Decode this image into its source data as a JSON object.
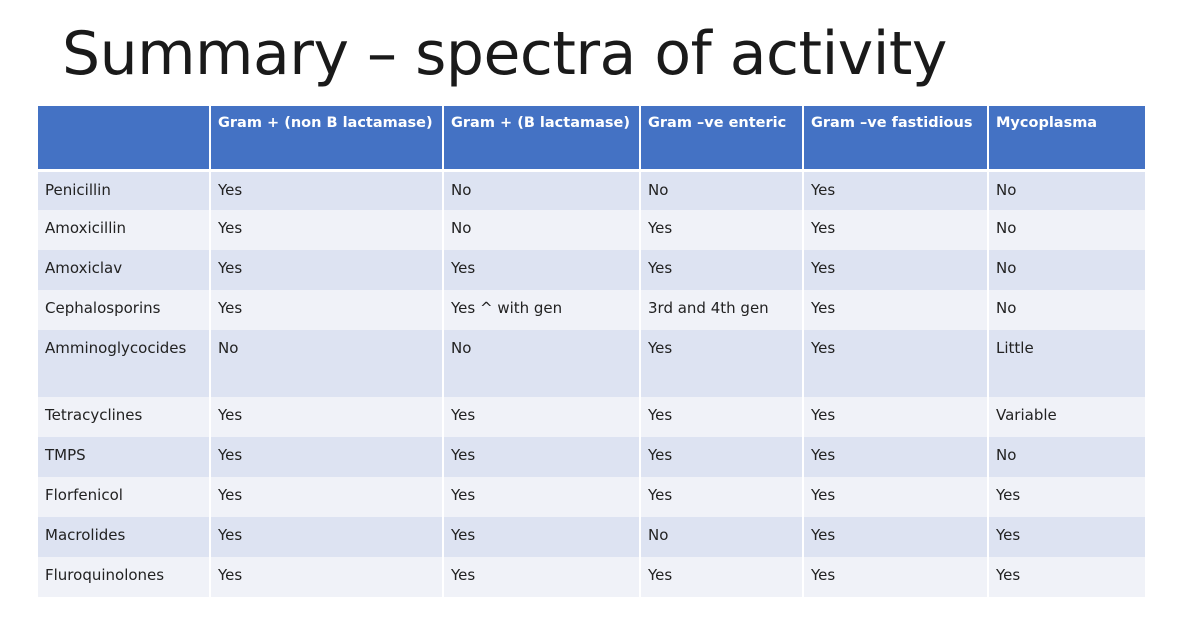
{
  "slide": {
    "title": "Summary – spectra of activity"
  },
  "table": {
    "headers": [
      "",
      "Gram + (non B lactamase)",
      "Gram + (B lactamase)",
      "Gram –ve enteric",
      "Gram –ve fastidious",
      "Mycoplasma"
    ],
    "rows": [
      [
        "Penicillin",
        "Yes",
        "No",
        "No",
        "Yes",
        "No"
      ],
      [
        "Amoxicillin",
        "Yes",
        "No",
        "Yes",
        "Yes",
        "No"
      ],
      [
        "Amoxiclav",
        "Yes",
        "Yes",
        "Yes",
        "Yes",
        "No"
      ],
      [
        "Cephalosporins",
        "Yes",
        "Yes ^ with gen",
        "3rd and 4th gen",
        "Yes",
        "No"
      ],
      [
        "Amminoglycocides",
        "No",
        "No",
        "Yes",
        "Yes",
        "Little"
      ],
      [
        "Tetracyclines",
        "Yes",
        "Yes",
        "Yes",
        "Yes",
        "Variable"
      ],
      [
        "TMPS",
        "Yes",
        "Yes",
        "Yes",
        "Yes",
        "No"
      ],
      [
        "Florfenicol",
        "Yes",
        "Yes",
        "Yes",
        "Yes",
        "Yes"
      ],
      [
        "Macrolides",
        "Yes",
        "Yes",
        "No",
        "Yes",
        "Yes"
      ],
      [
        "Fluroquinolones",
        "Yes",
        "Yes",
        "Yes",
        "Yes",
        "Yes"
      ]
    ]
  },
  "colors": {
    "header_bg": "#4472c4",
    "header_text": "#ffffff",
    "row_band_dark": "#dde3f2",
    "row_band_light": "#f0f2f8"
  }
}
